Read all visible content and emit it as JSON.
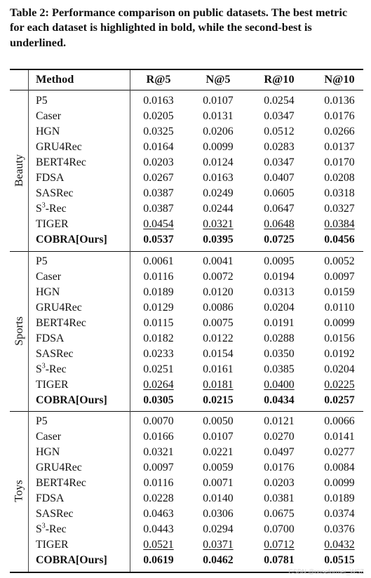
{
  "caption": "Table 2: Performance comparison on public datasets. The best metric for each dataset is highlighted in bold, while the second-best is underlined.",
  "headers": {
    "method": "Method",
    "m1": "R@5",
    "m2": "N@5",
    "m3": "R@10",
    "m4": "N@10"
  },
  "groups": [
    {
      "name": "Beauty",
      "rows": [
        [
          "P5",
          "0.0163",
          "0.0107",
          "0.0254",
          "0.0136"
        ],
        [
          "Caser",
          "0.0205",
          "0.0131",
          "0.0347",
          "0.0176"
        ],
        [
          "HGN",
          "0.0325",
          "0.0206",
          "0.0512",
          "0.0266"
        ],
        [
          "GRU4Rec",
          "0.0164",
          "0.0099",
          "0.0283",
          "0.0137"
        ],
        [
          "BERT4Rec",
          "0.0203",
          "0.0124",
          "0.0347",
          "0.0170"
        ],
        [
          "FDSA",
          "0.0267",
          "0.0163",
          "0.0407",
          "0.0208"
        ],
        [
          "SASRec",
          "0.0387",
          "0.0249",
          "0.0605",
          "0.0318"
        ],
        [
          "S3-Rec",
          "0.0387",
          "0.0244",
          "0.0647",
          "0.0327"
        ],
        [
          "TIGER",
          "0.0454",
          "0.0321",
          "0.0648",
          "0.0384"
        ],
        [
          "COBRA[Ours]",
          "0.0537",
          "0.0395",
          "0.0725",
          "0.0456"
        ]
      ]
    },
    {
      "name": "Sports",
      "rows": [
        [
          "P5",
          "0.0061",
          "0.0041",
          "0.0095",
          "0.0052"
        ],
        [
          "Caser",
          "0.0116",
          "0.0072",
          "0.0194",
          "0.0097"
        ],
        [
          "HGN",
          "0.0189",
          "0.0120",
          "0.0313",
          "0.0159"
        ],
        [
          "GRU4Rec",
          "0.0129",
          "0.0086",
          "0.0204",
          "0.0110"
        ],
        [
          "BERT4Rec",
          "0.0115",
          "0.0075",
          "0.0191",
          "0.0099"
        ],
        [
          "FDSA",
          "0.0182",
          "0.0122",
          "0.0288",
          "0.0156"
        ],
        [
          "SASRec",
          "0.0233",
          "0.0154",
          "0.0350",
          "0.0192"
        ],
        [
          "S3-Rec",
          "0.0251",
          "0.0161",
          "0.0385",
          "0.0204"
        ],
        [
          "TIGER",
          "0.0264",
          "0.0181",
          "0.0400",
          "0.0225"
        ],
        [
          "COBRA[Ours]",
          "0.0305",
          "0.0215",
          "0.0434",
          "0.0257"
        ]
      ]
    },
    {
      "name": "Toys",
      "rows": [
        [
          "P5",
          "0.0070",
          "0.0050",
          "0.0121",
          "0.0066"
        ],
        [
          "Caser",
          "0.0166",
          "0.0107",
          "0.0270",
          "0.0141"
        ],
        [
          "HGN",
          "0.0321",
          "0.0221",
          "0.0497",
          "0.0277"
        ],
        [
          "GRU4Rec",
          "0.0097",
          "0.0059",
          "0.0176",
          "0.0084"
        ],
        [
          "BERT4Rec",
          "0.0116",
          "0.0071",
          "0.0203",
          "0.0099"
        ],
        [
          "FDSA",
          "0.0228",
          "0.0140",
          "0.0381",
          "0.0189"
        ],
        [
          "SASRec",
          "0.0463",
          "0.0306",
          "0.0675",
          "0.0374"
        ],
        [
          "S3-Rec",
          "0.0443",
          "0.0294",
          "0.0700",
          "0.0376"
        ],
        [
          "TIGER",
          "0.0521",
          "0.0371",
          "0.0712",
          "0.0432"
        ],
        [
          "COBRA[Ours]",
          "0.0619",
          "0.0462",
          "0.0781",
          "0.0515"
        ]
      ]
    }
  ],
  "watermark": "CSDN @unseformer_WSZ"
}
